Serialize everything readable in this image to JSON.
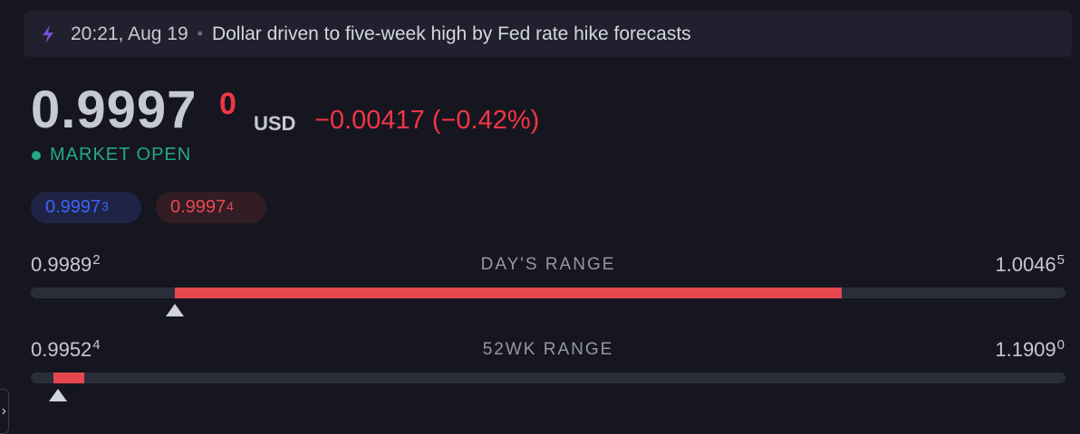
{
  "news": {
    "time": "20:21, Aug 19",
    "separator": "•",
    "headline": "Dollar driven to five-week high by Fed rate hike forecasts",
    "icon": "lightning-icon"
  },
  "quote": {
    "price_main": "0.9997",
    "price_sup": "0",
    "currency": "USD",
    "change": "−0.00417 (−0.42%)",
    "status": "MARKET OPEN"
  },
  "bid_ask": {
    "bid_main": "0.9997",
    "bid_sup": "3",
    "ask_main": "0.9997",
    "ask_sup": "4"
  },
  "days_range": {
    "label": "DAY'S RANGE",
    "low_main": "0.9989",
    "low_sup": "2",
    "high_main": "1.0046",
    "high_sup": "5",
    "fill_start_fraction": 0.139,
    "fill_end_fraction": 0.784,
    "marker_fraction": 0.139
  },
  "week52_range": {
    "label": "52WK RANGE",
    "low_main": "0.9952",
    "low_sup": "4",
    "high_main": "1.1909",
    "high_sup": "0",
    "fill_start_fraction": 0.022,
    "fill_end_fraction": 0.052,
    "marker_fraction": 0.026
  },
  "colors": {
    "accent_red": "#f23645",
    "accent_green": "#22a88a",
    "accent_blue": "#3d64f5",
    "lightning": "#7b4fd6"
  },
  "side_handle_icon": "chevron-right-icon",
  "side_handle_glyph": "›"
}
